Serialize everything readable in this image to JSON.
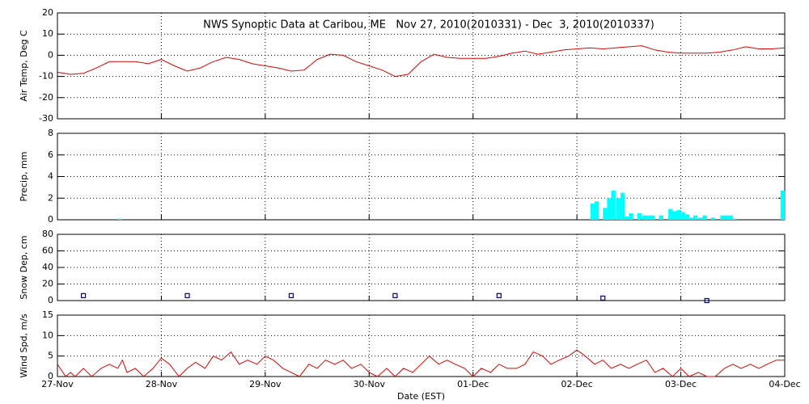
{
  "chart_data": [
    {
      "type": "line",
      "title": "NWS Synoptic Data at Caribou, ME   Nov 27, 2010(2010331) - Dec  3, 2010(2010337)",
      "ylabel": "Air Temp, Deg C",
      "color": "#e00000",
      "grid": true,
      "xlim": [
        0,
        7
      ],
      "xticks": [
        1,
        2,
        3,
        4,
        5,
        6
      ],
      "ylim": [
        -30,
        20
      ],
      "yticks": [
        -30,
        -20,
        -10,
        0,
        10,
        20
      ],
      "x": [
        0,
        0.125,
        0.25,
        0.375,
        0.5,
        0.625,
        0.75,
        0.875,
        1,
        1.125,
        1.25,
        1.375,
        1.5,
        1.625,
        1.75,
        1.875,
        2,
        2.125,
        2.25,
        2.375,
        2.5,
        2.625,
        2.75,
        2.875,
        3,
        3.125,
        3.25,
        3.375,
        3.5,
        3.625,
        3.75,
        3.875,
        4,
        4.125,
        4.25,
        4.375,
        4.5,
        4.625,
        4.75,
        4.875,
        5,
        5.125,
        5.25,
        5.375,
        5.5,
        5.625,
        5.75,
        5.875,
        6,
        6.125,
        6.25,
        6.375,
        6.5,
        6.625,
        6.75,
        6.875,
        7
      ],
      "values": [
        -8,
        -9,
        -8.5,
        -6,
        -3,
        -3,
        -3,
        -4,
        -2,
        -5,
        -7.5,
        -6,
        -3,
        -1,
        -2,
        -4,
        -5,
        -6,
        -7.5,
        -7,
        -2,
        0.5,
        0,
        -3,
        -5,
        -7,
        -10,
        -9,
        -3,
        0.5,
        -1,
        -1.5,
        -1.5,
        -1.5,
        -0.5,
        1,
        2,
        0.5,
        1.5,
        2.5,
        3,
        3.5,
        3,
        3.5,
        4,
        4.5,
        2.5,
        1.5,
        1,
        1,
        1,
        1.5,
        2.5,
        4,
        3,
        3,
        3.5
      ]
    },
    {
      "type": "bar",
      "ylabel": "Precip, mm",
      "color": "#00ffff",
      "grid": true,
      "xlim": [
        0,
        7
      ],
      "xticks": [
        1,
        2,
        3,
        4,
        5,
        6
      ],
      "ylim": [
        0,
        8
      ],
      "yticks": [
        0,
        2,
        4,
        6,
        8
      ],
      "x": [
        0.58,
        5.13,
        5.17,
        5.25,
        5.29,
        5.33,
        5.38,
        5.42,
        5.46,
        5.5,
        5.58,
        5.63,
        5.67,
        5.71,
        5.79,
        5.88,
        5.92,
        5.96,
        6,
        6.04,
        6.08,
        6.12,
        6.17,
        6.21,
        6.29,
        6.38,
        6.42,
        6.46,
        6.5,
        6.96
      ],
      "values": [
        0.1,
        1.5,
        1.7,
        1.1,
        2,
        2.7,
        2,
        2.5,
        0.3,
        0.6,
        0.6,
        0.4,
        0.4,
        0.4,
        0.4,
        1,
        0.8,
        0.9,
        0.7,
        0.5,
        0.2,
        0.4,
        0.2,
        0.4,
        0.2,
        0.4,
        0.4,
        0.4,
        0.1,
        2.7
      ]
    },
    {
      "type": "scatter",
      "ylabel": "Snow Dep, cm",
      "color": "#000080",
      "grid": true,
      "xlim": [
        0,
        7
      ],
      "xticks": [
        1,
        2,
        3,
        4,
        5,
        6
      ],
      "ylim": [
        0,
        80
      ],
      "yticks": [
        0,
        20,
        40,
        60,
        80
      ],
      "x": [
        0.25,
        1.25,
        2.25,
        3.25,
        4.25,
        5.25,
        6.25
      ],
      "values": [
        6,
        6,
        6,
        6,
        6,
        3,
        0
      ]
    },
    {
      "type": "line",
      "ylabel": "Wind Spd, m/s",
      "xlabel": "Date (EST)",
      "color": "#e00000",
      "grid": true,
      "xlim": [
        0,
        7
      ],
      "xticks": [
        {
          "value": 0,
          "label": "27-Nov"
        },
        {
          "value": 1,
          "label": "28-Nov"
        },
        {
          "value": 2,
          "label": "29-Nov"
        },
        {
          "value": 3,
          "label": "30-Nov"
        },
        {
          "value": 4,
          "label": "01-Dec"
        },
        {
          "value": 5,
          "label": "02-Dec"
        },
        {
          "value": 6,
          "label": "03-Dec"
        },
        {
          "value": 7,
          "label": "04-Dec"
        }
      ],
      "ylim": [
        0,
        15
      ],
      "yticks": [
        0,
        5,
        10,
        15
      ],
      "x": [
        0,
        0.08,
        0.125,
        0.17,
        0.25,
        0.33,
        0.42,
        0.5,
        0.58,
        0.625,
        0.67,
        0.75,
        0.83,
        0.92,
        1,
        1.08,
        1.17,
        1.25,
        1.33,
        1.42,
        1.5,
        1.58,
        1.67,
        1.75,
        1.83,
        1.92,
        2,
        2.08,
        2.17,
        2.25,
        2.33,
        2.42,
        2.5,
        2.58,
        2.67,
        2.75,
        2.83,
        2.92,
        3,
        3.08,
        3.17,
        3.25,
        3.33,
        3.42,
        3.5,
        3.58,
        3.67,
        3.75,
        3.83,
        3.92,
        4,
        4.08,
        4.17,
        4.25,
        4.33,
        4.42,
        4.5,
        4.58,
        4.67,
        4.75,
        4.83,
        4.92,
        5,
        5.08,
        5.17,
        5.25,
        5.33,
        5.42,
        5.5,
        5.58,
        5.67,
        5.75,
        5.83,
        5.92,
        6,
        6.08,
        6.17,
        6.25,
        6.33,
        6.42,
        6.5,
        6.58,
        6.67,
        6.75,
        6.83,
        6.92,
        7
      ],
      "values": [
        3,
        0,
        1,
        0,
        2,
        0,
        2,
        3,
        2,
        4,
        1,
        2,
        0,
        2,
        4.5,
        3,
        0,
        2,
        3.5,
        2,
        5,
        4,
        6,
        3,
        4,
        3,
        5,
        4,
        2,
        1,
        0,
        3,
        2,
        4,
        3,
        4,
        2,
        3,
        1,
        0,
        2,
        0,
        2,
        1,
        3,
        5,
        3,
        4,
        3,
        2,
        0,
        2,
        1,
        3,
        2,
        2,
        3,
        6,
        5,
        3,
        4,
        5,
        6.5,
        5,
        3,
        4,
        2,
        3,
        2,
        3,
        4,
        1,
        2,
        0,
        2,
        0,
        1,
        0,
        0,
        2,
        3,
        2,
        3,
        2,
        3,
        4,
        4
      ]
    }
  ]
}
